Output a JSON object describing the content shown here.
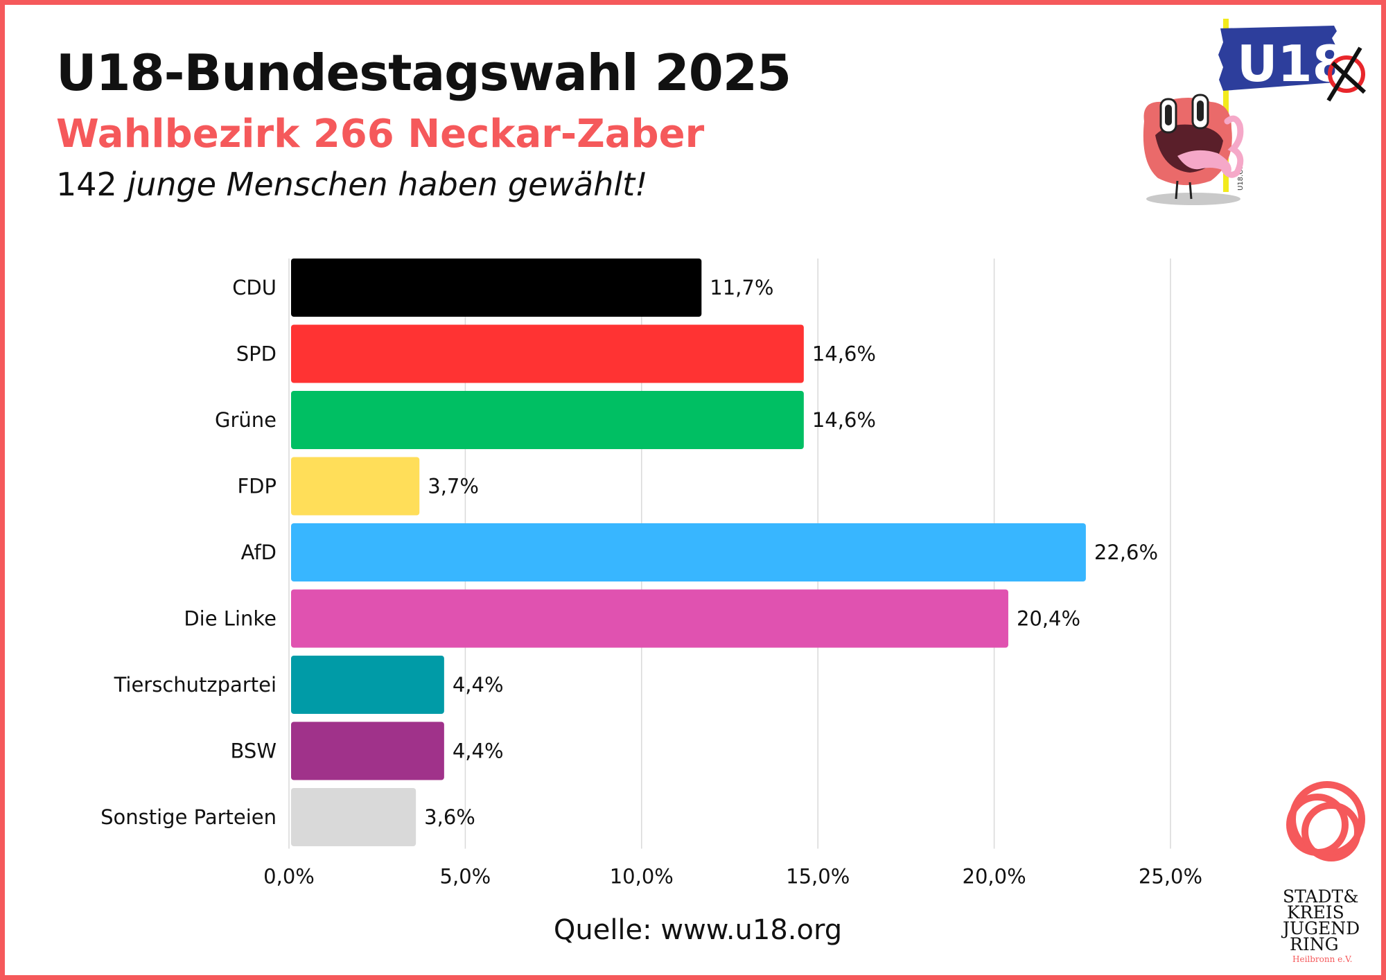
{
  "header": {
    "title": "U18-Bundestagswahl 2025",
    "subtitle": "Wahlbezirk 266 Neckar-Zaber",
    "count_number": "142",
    "count_text": "junge Menschen haben gewählt!"
  },
  "source": "Quelle: www.u18.org",
  "logos": {
    "u18_flag_text": "U18",
    "u18_pole_text": "U18.ORG",
    "sjr_lines": [
      "STADT&",
      "KREIS",
      "JUGEND",
      "RING"
    ],
    "sjr_sub": "Heilbronn e.V."
  },
  "colors": {
    "frame": "#f5595b",
    "accent": "#f5595b"
  },
  "chart_data": {
    "type": "bar",
    "orientation": "horizontal",
    "categories": [
      "CDU",
      "SPD",
      "Grüne",
      "FDP",
      "AfD",
      "Die Linke",
      "Tierschutzpartei",
      "BSW",
      "Sonstige Parteien"
    ],
    "values": [
      11.7,
      14.6,
      14.6,
      3.7,
      22.6,
      20.4,
      4.4,
      4.4,
      3.6
    ],
    "value_labels": [
      "11,7%",
      "14,6%",
      "14,6%",
      "3,7%",
      "22,6%",
      "20,4%",
      "4,4%",
      "4,4%",
      "3,6%"
    ],
    "bar_colors": [
      "#000000",
      "#ff3333",
      "#00bf63",
      "#ffde59",
      "#38b6ff",
      "#e052b0",
      "#009ba7",
      "#a0328a",
      "#d9d9d9"
    ],
    "xlim": [
      0,
      25
    ],
    "xticks": [
      0,
      5,
      10,
      15,
      20,
      25
    ],
    "xtick_labels": [
      "0,0%",
      "5,0%",
      "10,0%",
      "15,0%",
      "20,0%",
      "25,0%"
    ],
    "grid": "vertical",
    "legend": "none"
  }
}
